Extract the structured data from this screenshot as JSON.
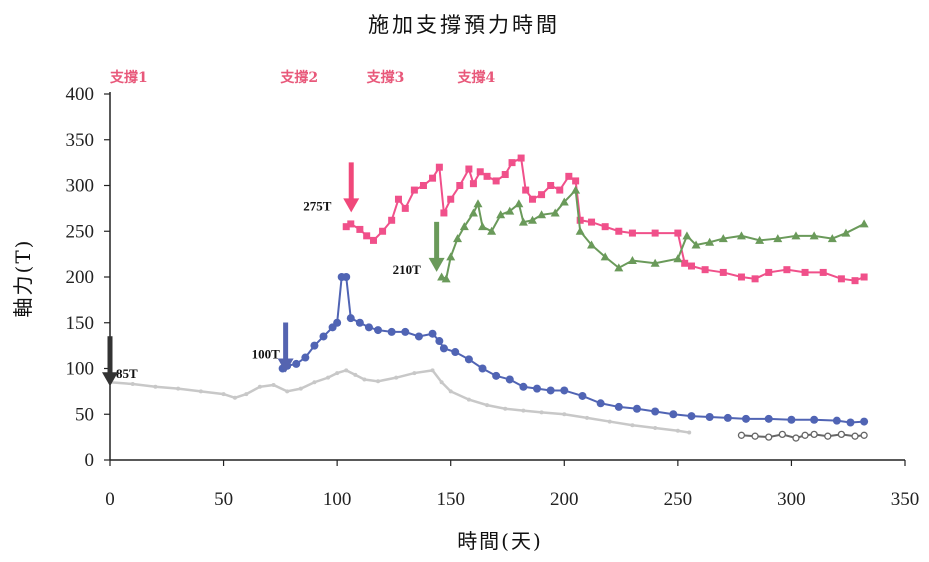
{
  "chart_data": {
    "type": "line",
    "title": "施加支撐預力時間",
    "xlabel": "時間(天)",
    "ylabel": "軸力(T)",
    "xlim": [
      0,
      350
    ],
    "ylim": [
      0,
      400
    ],
    "x_ticks": [
      0,
      50,
      100,
      150,
      200,
      250,
      300,
      350
    ],
    "y_ticks": [
      0,
      50,
      100,
      150,
      200,
      250,
      300,
      350,
      400
    ],
    "grid": false,
    "legend": "none",
    "brace_labels": [
      {
        "label": "支撐1",
        "x": 0
      },
      {
        "label": "支撐2",
        "x": 75
      },
      {
        "label": "支撐3",
        "x": 113
      },
      {
        "label": "支撐4",
        "x": 153
      }
    ],
    "annotations": [
      {
        "label": "85T",
        "x": 0,
        "y": 85,
        "arrow_color": "#333333"
      },
      {
        "label": "100T",
        "x": 76,
        "y": 100,
        "arrow_color": "#5564b0"
      },
      {
        "label": "275T",
        "x": 104,
        "y": 275,
        "arrow_color": "#f0487a"
      },
      {
        "label": "210T",
        "x": 146,
        "y": 210,
        "arrow_color": "#6a9a5a"
      }
    ],
    "series": [
      {
        "color": "#f0508a",
        "marker": "square",
        "x": [
          104,
          106,
          110,
          113,
          116,
          120,
          124,
          127,
          130,
          134,
          138,
          142,
          145,
          147,
          150,
          154,
          158,
          160,
          163,
          166,
          170,
          174,
          177,
          181,
          183,
          186,
          190,
          194,
          198,
          202,
          205,
          207,
          212,
          218,
          224,
          230,
          240,
          250,
          253,
          256,
          262,
          270,
          278,
          284,
          290,
          298,
          306,
          314,
          322,
          328,
          332
        ],
        "y": [
          255,
          258,
          252,
          245,
          240,
          250,
          262,
          285,
          275,
          295,
          300,
          308,
          320,
          270,
          285,
          300,
          318,
          302,
          315,
          310,
          305,
          312,
          325,
          330,
          295,
          285,
          290,
          300,
          295,
          310,
          305,
          262,
          260,
          255,
          250,
          248,
          248,
          248,
          215,
          212,
          208,
          205,
          200,
          198,
          205,
          208,
          205,
          205,
          198,
          196,
          200
        ]
      },
      {
        "color": "#6a9a5a",
        "marker": "triangle",
        "x": [
          146,
          148,
          150,
          153,
          156,
          160,
          162,
          164,
          168,
          172,
          176,
          180,
          182,
          186,
          190,
          196,
          200,
          205,
          207,
          212,
          218,
          224,
          230,
          240,
          250,
          254,
          258,
          264,
          270,
          278,
          286,
          294,
          302,
          310,
          318,
          324,
          332
        ],
        "y": [
          200,
          198,
          222,
          242,
          255,
          270,
          280,
          255,
          250,
          268,
          272,
          280,
          260,
          262,
          268,
          270,
          282,
          295,
          250,
          235,
          222,
          210,
          218,
          215,
          220,
          245,
          235,
          238,
          242,
          245,
          240,
          242,
          245,
          245,
          242,
          248,
          258
        ]
      },
      {
        "color": "#5064b4",
        "marker": "circle",
        "x": [
          76,
          78,
          82,
          86,
          90,
          94,
          98,
          100,
          102,
          104,
          106,
          110,
          114,
          118,
          124,
          130,
          136,
          142,
          145,
          147,
          152,
          158,
          164,
          170,
          176,
          182,
          188,
          194,
          200,
          208,
          216,
          224,
          232,
          240,
          248,
          256,
          264,
          272,
          280,
          290,
          300,
          310,
          320,
          326,
          332
        ],
        "y": [
          100,
          103,
          105,
          112,
          125,
          135,
          145,
          150,
          200,
          200,
          155,
          150,
          145,
          142,
          140,
          140,
          135,
          138,
          130,
          122,
          118,
          110,
          100,
          92,
          88,
          80,
          78,
          76,
          76,
          70,
          62,
          58,
          56,
          53,
          50,
          48,
          47,
          46,
          45,
          45,
          44,
          44,
          43,
          41,
          42
        ]
      },
      {
        "color": "#c8c8c8",
        "marker": "dot",
        "x": [
          0,
          10,
          20,
          30,
          40,
          50,
          55,
          60,
          66,
          72,
          78,
          84,
          90,
          96,
          100,
          104,
          108,
          112,
          118,
          126,
          134,
          142,
          146,
          150,
          158,
          166,
          174,
          182,
          190,
          200,
          210,
          220,
          230,
          240,
          250,
          255
        ],
        "y": [
          85,
          83,
          80,
          78,
          75,
          72,
          68,
          72,
          80,
          82,
          75,
          78,
          85,
          90,
          95,
          98,
          93,
          88,
          86,
          90,
          95,
          98,
          85,
          75,
          66,
          60,
          56,
          54,
          52,
          50,
          46,
          42,
          38,
          35,
          32,
          30
        ]
      },
      {
        "color": "#666666",
        "marker": "open-circle",
        "x": [
          278,
          284,
          290,
          296,
          302,
          306,
          310,
          316,
          322,
          328,
          332
        ],
        "y": [
          27,
          26,
          25,
          28,
          24,
          27,
          28,
          26,
          28,
          26,
          27
        ]
      }
    ]
  }
}
